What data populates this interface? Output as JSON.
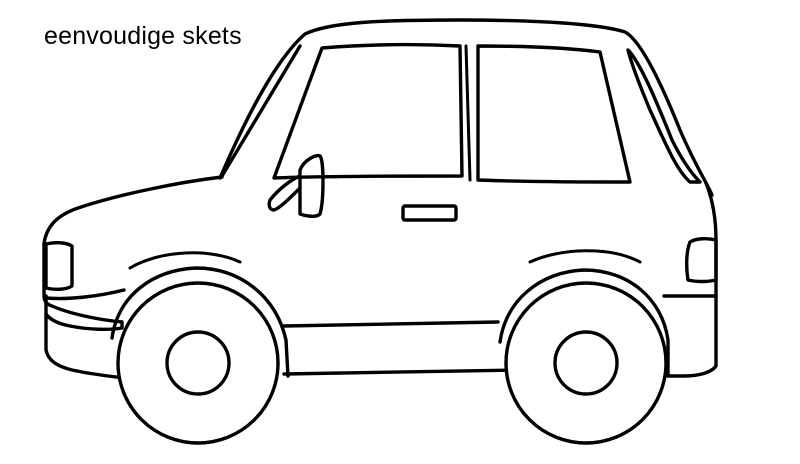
{
  "caption": "eenvoudige skets",
  "colors": {
    "background": "#ffffff",
    "ink": "#000000"
  },
  "drawing": {
    "subject": "car-icon",
    "style": "line-art"
  }
}
